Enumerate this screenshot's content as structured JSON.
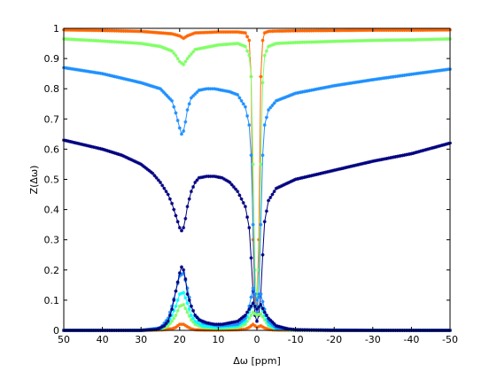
{
  "chart_data": {
    "type": "line",
    "title": "",
    "xlabel": "Δω [ppm]",
    "ylabel": "Z(Δω)",
    "xlim": [
      50,
      -50
    ],
    "ylim": [
      0,
      1
    ],
    "x_reversed": true,
    "x_ticks": [
      50,
      40,
      30,
      20,
      10,
      0,
      -10,
      -20,
      -30,
      -40,
      -50
    ],
    "x_tick_labels": [
      "50",
      "40",
      "30",
      "20",
      "10",
      "0",
      "-10",
      "-20",
      "-30",
      "-40",
      "-50"
    ],
    "y_ticks": [
      0,
      0.1,
      0.2,
      0.3,
      0.4,
      0.5,
      0.6,
      0.7,
      0.8,
      0.9,
      1
    ],
    "y_tick_labels": [
      "0",
      "0.1",
      "0.2",
      "0.3",
      "0.4",
      "0.5",
      "0.6",
      "0.7",
      "0.8",
      "0.9",
      "1"
    ],
    "grid": false,
    "legend": "none",
    "marker": "star",
    "series": [
      {
        "color": "#ff6600",
        "group": "z-spectrum",
        "x": [
          50,
          40,
          30,
          25,
          22,
          20,
          19,
          18,
          16,
          10,
          5,
          3,
          2,
          1.5,
          1,
          0.5,
          0,
          -0.5,
          -1,
          -1.5,
          -2,
          -3,
          -5,
          -10,
          -20,
          -30,
          -40,
          -50
        ],
        "y": [
          0.995,
          0.993,
          0.99,
          0.985,
          0.982,
          0.975,
          0.967,
          0.975,
          0.985,
          0.988,
          0.988,
          0.985,
          0.96,
          0.84,
          0.3,
          0.08,
          0.08,
          0.3,
          0.84,
          0.96,
          0.985,
          0.99,
          0.991,
          0.992,
          0.993,
          0.994,
          0.994,
          0.995
        ]
      },
      {
        "color": "#80ff66",
        "group": "z-spectrum",
        "x": [
          50,
          40,
          30,
          25,
          22,
          21,
          20,
          19,
          18,
          16,
          10,
          5,
          3,
          2,
          1.5,
          1,
          0.5,
          0,
          -0.5,
          -1,
          -1.5,
          -2,
          -3,
          -5,
          -10,
          -20,
          -30,
          -40,
          -50
        ],
        "y": [
          0.965,
          0.958,
          0.95,
          0.94,
          0.925,
          0.91,
          0.89,
          0.88,
          0.9,
          0.93,
          0.945,
          0.95,
          0.94,
          0.91,
          0.84,
          0.55,
          0.2,
          0.1,
          0.2,
          0.55,
          0.82,
          0.91,
          0.94,
          0.95,
          0.953,
          0.957,
          0.96,
          0.962,
          0.965
        ]
      },
      {
        "color": "#1e90ff",
        "group": "z-spectrum",
        "x": [
          50,
          45,
          40,
          35,
          30,
          25,
          22,
          21,
          20,
          19.5,
          19,
          18.5,
          18,
          17,
          15,
          13,
          11,
          9,
          7,
          5,
          3,
          2,
          1.5,
          1,
          0.5,
          0,
          -0.5,
          -1,
          -1.5,
          -2,
          -3,
          -5,
          -10,
          -20,
          -30,
          -40,
          -50
        ],
        "y": [
          0.87,
          0.86,
          0.85,
          0.835,
          0.82,
          0.8,
          0.76,
          0.72,
          0.67,
          0.65,
          0.66,
          0.69,
          0.73,
          0.77,
          0.795,
          0.8,
          0.8,
          0.795,
          0.79,
          0.78,
          0.74,
          0.68,
          0.58,
          0.35,
          0.12,
          0.06,
          0.12,
          0.35,
          0.58,
          0.68,
          0.73,
          0.76,
          0.785,
          0.81,
          0.83,
          0.848,
          0.865
        ]
      },
      {
        "color": "#000080",
        "group": "z-spectrum",
        "x": [
          50,
          45,
          40,
          35,
          30,
          27,
          25,
          23,
          22,
          21,
          20,
          19.5,
          19,
          18.5,
          18,
          17,
          16,
          15,
          13,
          11,
          9,
          7,
          5,
          3,
          2,
          1.5,
          1,
          0.5,
          0,
          -0.5,
          -1,
          -1.5,
          -2,
          -3,
          -5,
          -10,
          -20,
          -30,
          -40,
          -50
        ],
        "y": [
          0.63,
          0.615,
          0.6,
          0.58,
          0.55,
          0.52,
          0.49,
          0.45,
          0.42,
          0.38,
          0.34,
          0.33,
          0.34,
          0.37,
          0.41,
          0.46,
          0.49,
          0.505,
          0.51,
          0.51,
          0.505,
          0.49,
          0.46,
          0.41,
          0.34,
          0.24,
          0.13,
          0.05,
          0.03,
          0.05,
          0.12,
          0.25,
          0.36,
          0.43,
          0.47,
          0.5,
          0.53,
          0.56,
          0.585,
          0.62
        ]
      },
      {
        "color": "#ff6600",
        "group": "difference",
        "x": [
          50,
          30,
          25,
          22,
          21,
          20,
          19,
          18,
          17,
          16,
          14,
          10,
          5,
          3,
          2,
          1,
          0,
          -1,
          -2,
          -3,
          -5,
          -10,
          -30,
          -50
        ],
        "y": [
          0,
          0,
          0.001,
          0.005,
          0.01,
          0.02,
          0.02,
          0.012,
          0.005,
          0.002,
          0.001,
          0.001,
          0.002,
          0.004,
          0.01,
          0.02,
          0.01,
          0.015,
          0.008,
          0.003,
          0.001,
          0,
          0,
          0
        ]
      },
      {
        "color": "#80ff66",
        "group": "difference",
        "x": [
          50,
          30,
          25,
          23,
          22,
          21,
          20,
          19,
          18,
          17,
          16,
          14,
          10,
          5,
          3,
          2,
          1,
          0,
          -1,
          -2,
          -3,
          -5,
          -10,
          -30,
          -50
        ],
        "y": [
          0,
          0,
          0.003,
          0.015,
          0.03,
          0.05,
          0.08,
          0.085,
          0.06,
          0.035,
          0.02,
          0.01,
          0.006,
          0.01,
          0.02,
          0.04,
          0.06,
          0.05,
          0.055,
          0.035,
          0.015,
          0.004,
          0.001,
          0,
          0
        ]
      },
      {
        "color": "#00ffff",
        "group": "difference",
        "x": [
          50,
          30,
          25,
          23,
          22,
          21,
          20,
          19,
          18,
          17,
          16,
          14,
          10,
          5,
          3,
          2,
          1,
          0,
          -1,
          -2,
          -3,
          -5,
          -10,
          -30,
          -50
        ],
        "y": [
          0,
          0,
          0.005,
          0.025,
          0.05,
          0.08,
          0.12,
          0.125,
          0.09,
          0.05,
          0.03,
          0.015,
          0.01,
          0.015,
          0.03,
          0.06,
          0.09,
          0.075,
          0.08,
          0.05,
          0.02,
          0.006,
          0.001,
          0,
          0
        ]
      },
      {
        "color": "#1e90ff",
        "group": "difference",
        "x": [
          50,
          30,
          25,
          23,
          22,
          21,
          20,
          19,
          18,
          17,
          16,
          14,
          10,
          5,
          3,
          2,
          1,
          0,
          -1,
          -2,
          -3,
          -5,
          -10,
          -30,
          -50
        ],
        "y": [
          0,
          0,
          0.008,
          0.04,
          0.08,
          0.13,
          0.18,
          0.19,
          0.14,
          0.08,
          0.05,
          0.025,
          0.015,
          0.02,
          0.04,
          0.08,
          0.14,
          0.1,
          0.12,
          0.07,
          0.03,
          0.008,
          0.002,
          0,
          0
        ]
      },
      {
        "color": "#000080",
        "group": "difference",
        "x": [
          50,
          30,
          26,
          24,
          23,
          22,
          21,
          20,
          19.5,
          19,
          18.5,
          18,
          17,
          16,
          15,
          13,
          11,
          9,
          7,
          5,
          3,
          2,
          1,
          0,
          -1,
          -2,
          -3,
          -5,
          -8,
          -10,
          -20,
          -30,
          -50
        ],
        "y": [
          0,
          0,
          0.003,
          0.015,
          0.03,
          0.07,
          0.13,
          0.19,
          0.21,
          0.2,
          0.17,
          0.12,
          0.08,
          0.05,
          0.035,
          0.025,
          0.02,
          0.02,
          0.025,
          0.03,
          0.05,
          0.07,
          0.09,
          0.07,
          0.085,
          0.06,
          0.04,
          0.015,
          0.005,
          0.002,
          0,
          0,
          0
        ]
      }
    ]
  }
}
